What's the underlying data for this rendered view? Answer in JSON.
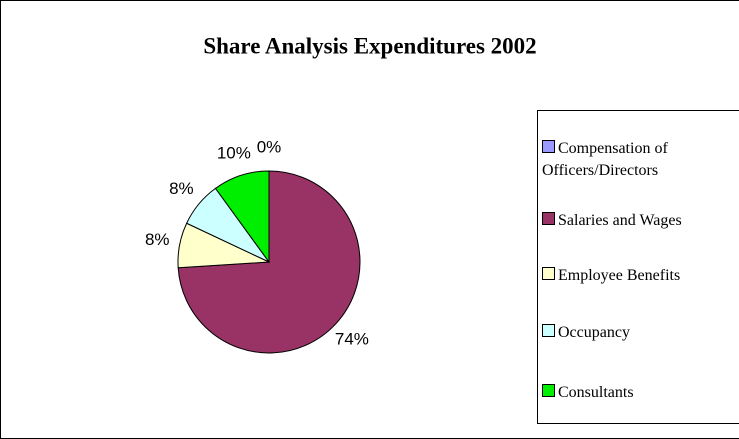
{
  "chart_data": {
    "type": "pie",
    "title": "Share Analysis Expenditures 2002",
    "categories": [
      "Compensation of Officers/Directors",
      "Salaries and Wages",
      "Employee Benefits",
      "Occupancy",
      "Consultants"
    ],
    "values": [
      0,
      74,
      8,
      8,
      10
    ],
    "value_labels": [
      "0%",
      "74%",
      "8%",
      "8%",
      "10%"
    ],
    "colors": [
      "#9999ff",
      "#993366",
      "#ffffcc",
      "#ccffff",
      "#00ee00"
    ],
    "legend": "right"
  }
}
